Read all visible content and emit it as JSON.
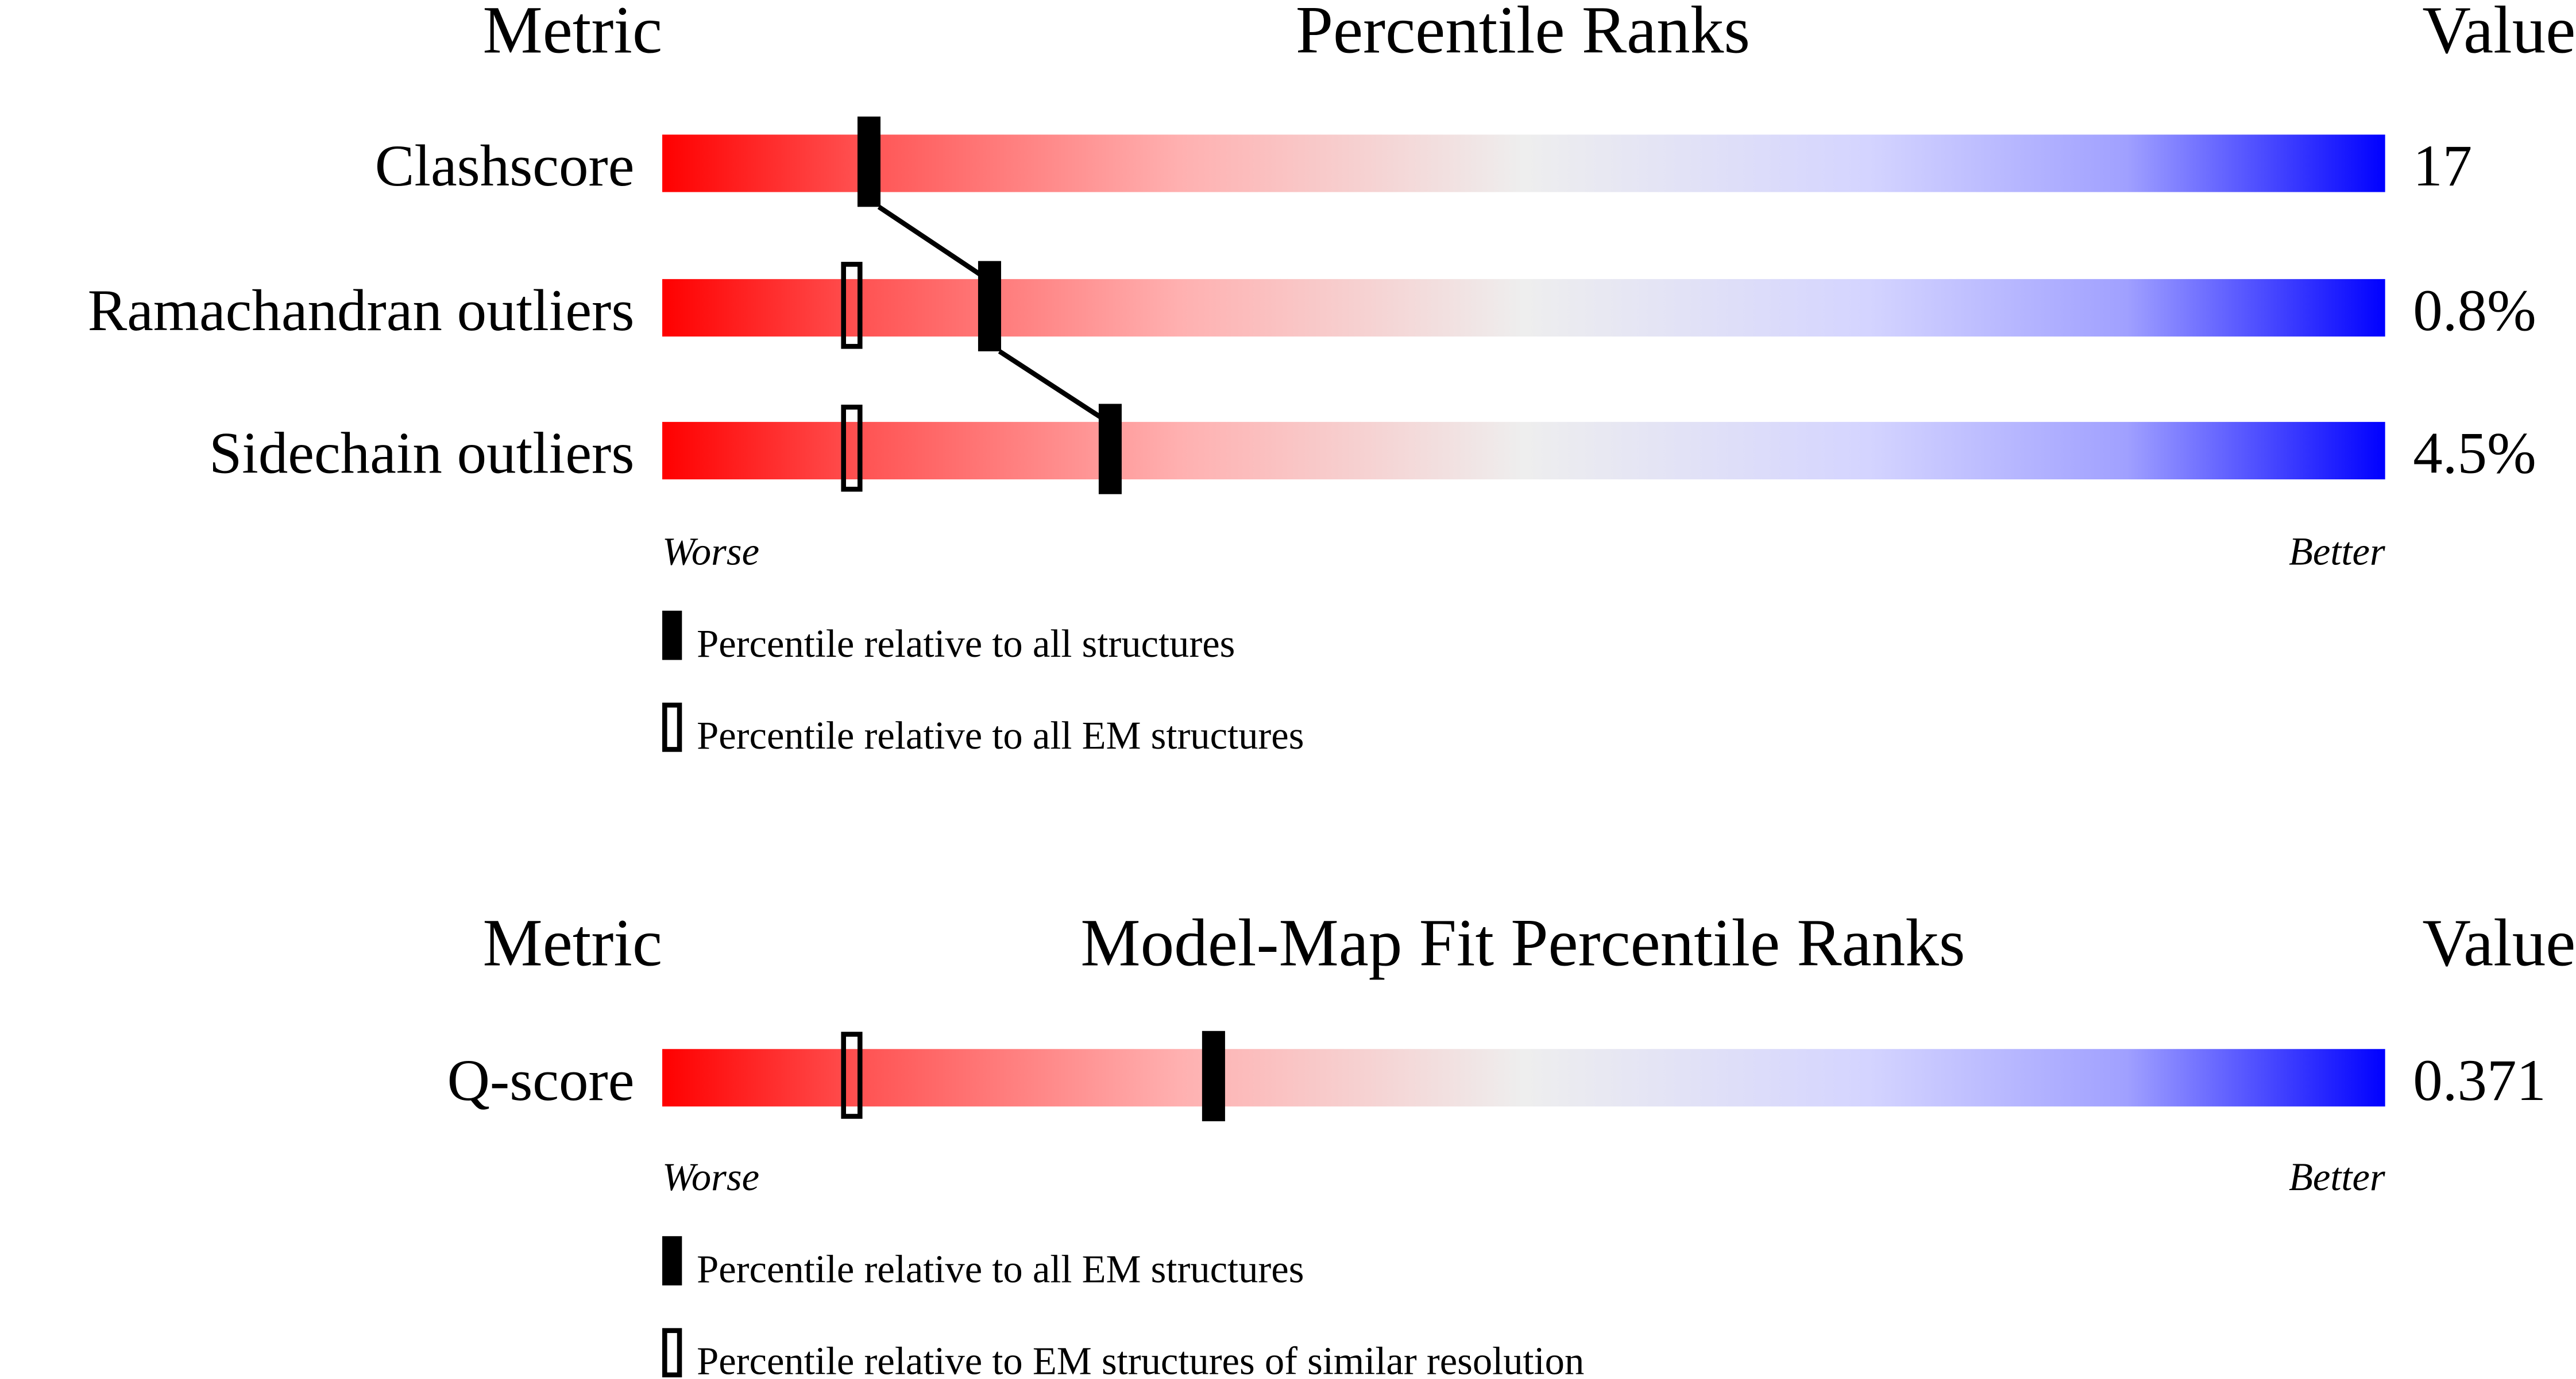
{
  "chart_data": [
    {
      "type": "bar",
      "title": "Percentile Ranks",
      "metric_header": "Metric",
      "value_header": "Value",
      "xlim": [
        0,
        100
      ],
      "axis_left_label": "Worse",
      "axis_right_label": "Better",
      "gradient_colors": [
        "#ff0000",
        "#eeeeee",
        "#0000ff"
      ],
      "rows": [
        {
          "metric": "Clashscore",
          "value": "17",
          "percentile_filled": 12,
          "percentile_open": null
        },
        {
          "metric": "Ramachandran outliers",
          "value": "0.8%",
          "percentile_filled": 19,
          "percentile_open": 11
        },
        {
          "metric": "Sidechain outliers",
          "value": "4.5%",
          "percentile_filled": 26,
          "percentile_open": 11
        }
      ],
      "legend": [
        {
          "marker": "filled",
          "label": "Percentile relative to all structures"
        },
        {
          "marker": "open",
          "label": "Percentile relative to all EM structures"
        }
      ]
    },
    {
      "type": "bar",
      "title": "Model-Map Fit Percentile Ranks",
      "metric_header": "Metric",
      "value_header": "Value",
      "xlim": [
        0,
        100
      ],
      "axis_left_label": "Worse",
      "axis_right_label": "Better",
      "gradient_colors": [
        "#ff0000",
        "#eeeeee",
        "#0000ff"
      ],
      "rows": [
        {
          "metric": "Q-score",
          "value": "0.371",
          "percentile_filled": 32,
          "percentile_open": 11
        }
      ],
      "legend": [
        {
          "marker": "filled",
          "label": "Percentile relative to all EM structures"
        },
        {
          "marker": "open",
          "label": "Percentile relative to EM structures of similar resolution"
        }
      ]
    }
  ]
}
